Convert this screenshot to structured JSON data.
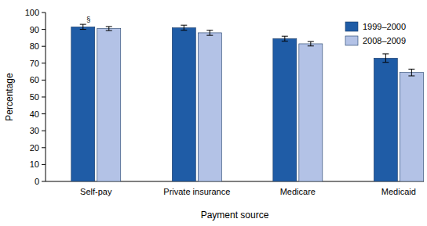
{
  "chart_data": {
    "type": "bar",
    "x_label": "Payment source",
    "y_label": "Percentage",
    "categories": [
      "Self-pay",
      "Private insurance",
      "Medicare",
      "Medicaid"
    ],
    "series": [
      {
        "name": "1999–2000",
        "color": "#1f5ca6",
        "values": [
          91.5,
          91,
          84.5,
          73
        ],
        "errors": [
          1.5,
          1.5,
          1.5,
          2.5
        ]
      },
      {
        "name": "2008–2009",
        "color": "#b3c2e6",
        "values": [
          90.5,
          88,
          81.5,
          64.5
        ],
        "errors": [
          1.2,
          1.5,
          1.3,
          2
        ]
      }
    ],
    "annotations": [
      {
        "text": "§",
        "category": "Self-pay",
        "series": "1999–2000"
      }
    ],
    "ylim": [
      0,
      100
    ],
    "yticks": [
      0,
      10,
      20,
      30,
      40,
      50,
      60,
      70,
      80,
      90,
      100
    ],
    "grid": false,
    "legend": "upper right"
  }
}
